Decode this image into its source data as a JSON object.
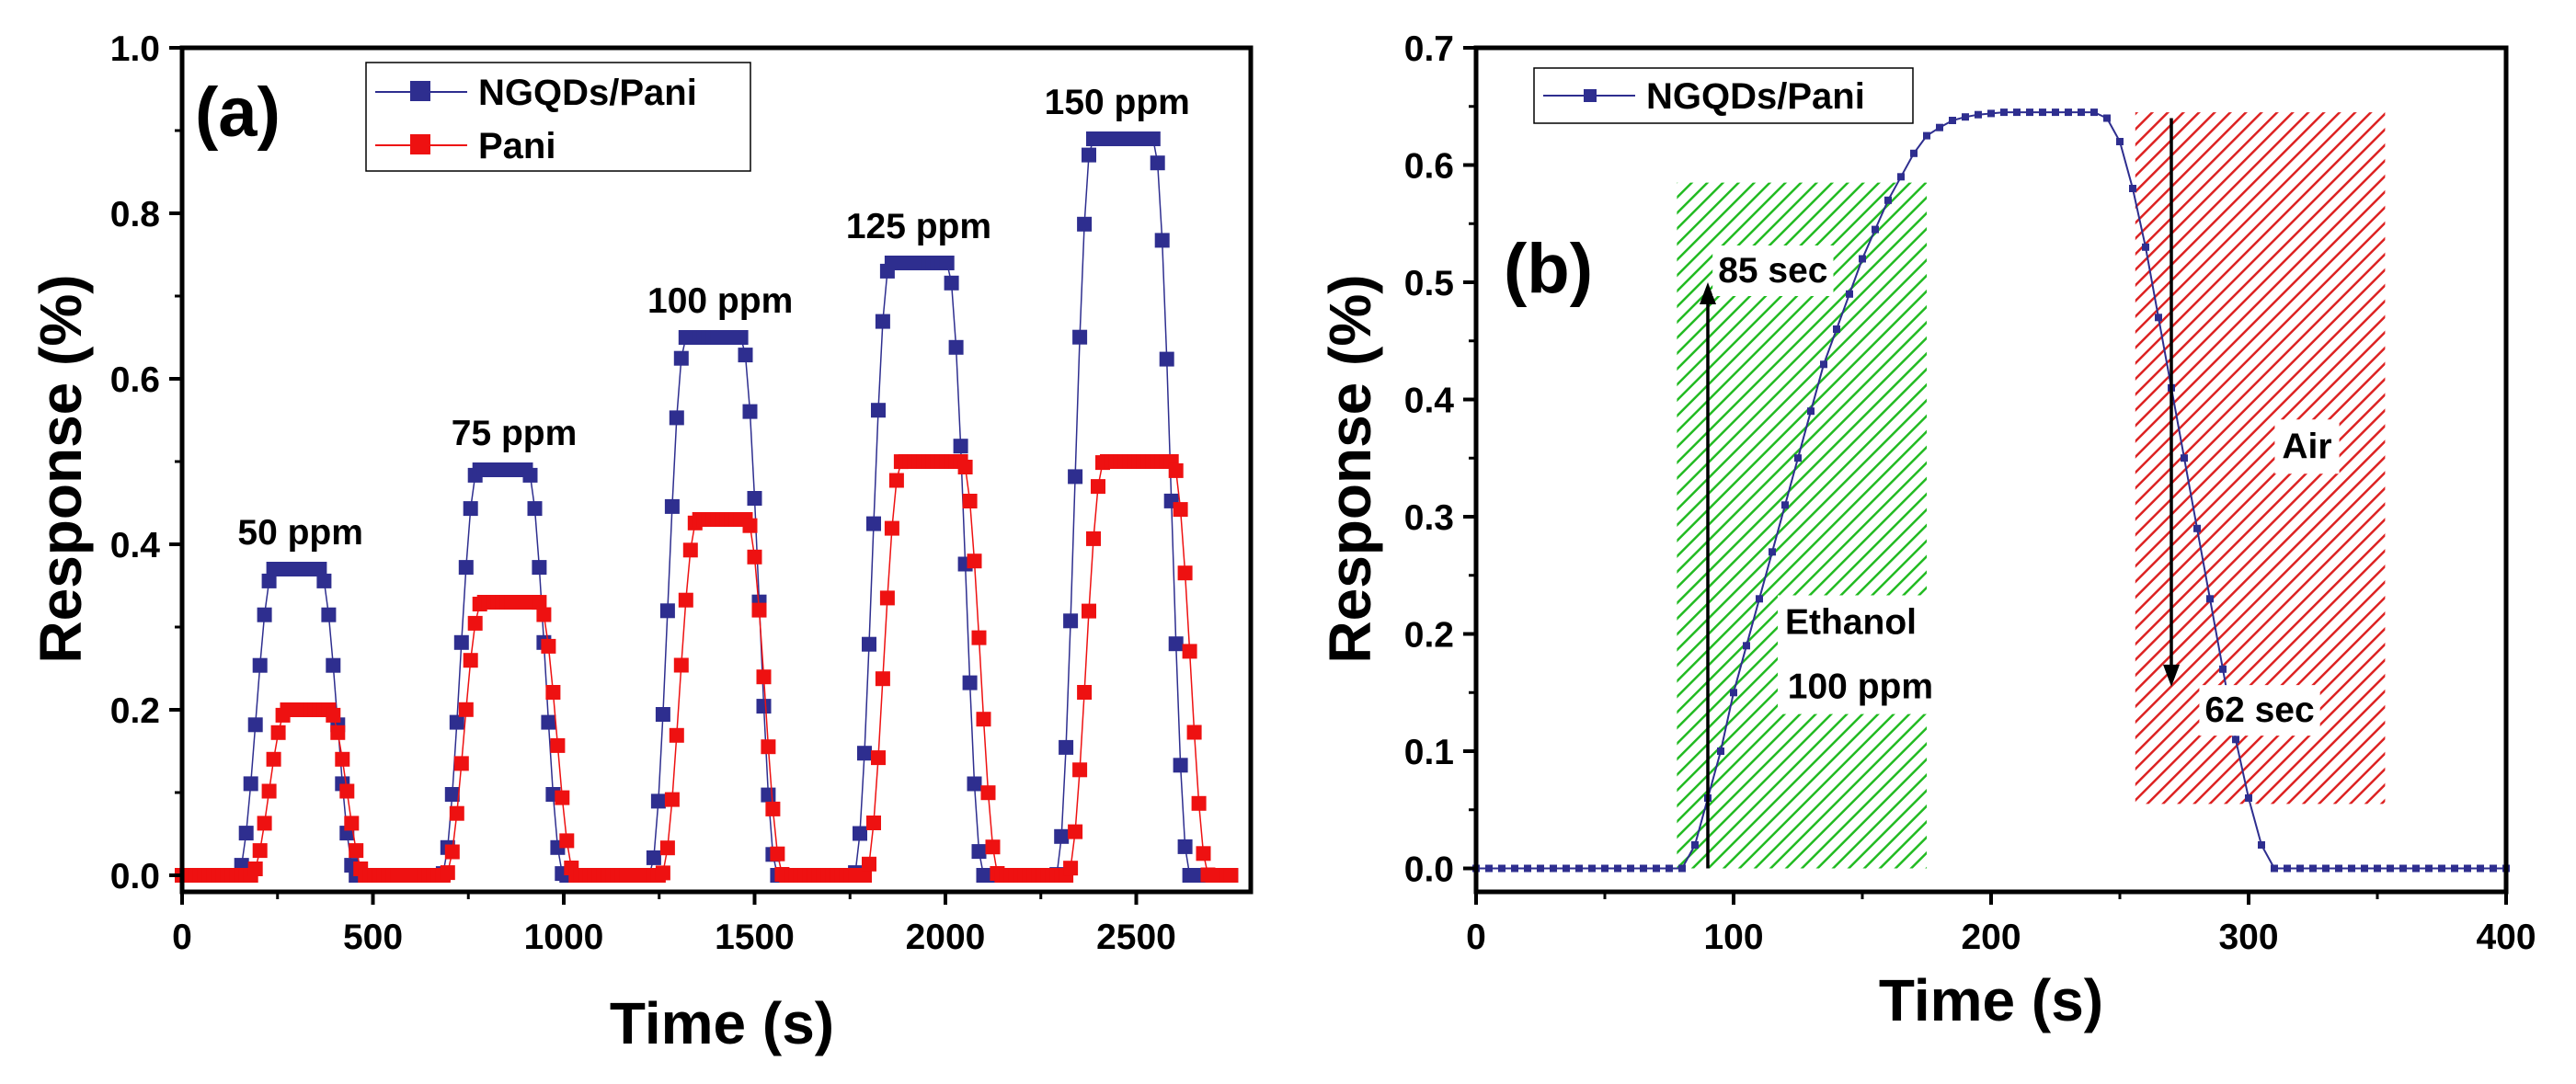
{
  "colors": {
    "navy": "#2e2e8f",
    "red": "#ee1111",
    "green": "#22bb22",
    "hatch_red": "#dd2222"
  },
  "chart_data": [
    {
      "panel": "(a)",
      "type": "scatter",
      "xlabel": "Time (s)",
      "ylabel": "Response (%)",
      "xlim": [
        0,
        2800
      ],
      "ylim": [
        -0.02,
        1.0
      ],
      "xticks": [
        0,
        500,
        1000,
        1500,
        2000,
        2500
      ],
      "xtick_labels": [
        "0",
        "500",
        "1000",
        "1500",
        "2000",
        "2500"
      ],
      "yticks": [
        0.0,
        0.2,
        0.4,
        0.6,
        0.8,
        1.0
      ],
      "ytick_labels": [
        "0.0",
        "0.2",
        "0.4",
        "0.6",
        "0.8",
        "1.0"
      ],
      "legend": [
        "NGQDs/Pani",
        "Pani"
      ],
      "legend_position": "top",
      "pulse_time_range": [
        0,
        2750
      ],
      "pulse_time_step": 12,
      "series": [
        {
          "name": "NGQDs/Pani",
          "color": "#2e2e8f",
          "pulses": [
            {
              "start": 145,
              "end": 455,
              "peak": 0.37
            },
            {
              "start": 680,
              "end": 1000,
              "peak": 0.49
            },
            {
              "start": 1225,
              "end": 1560,
              "peak": 0.65
            },
            {
              "start": 1760,
              "end": 2100,
              "peak": 0.74
            },
            {
              "start": 2290,
              "end": 2640,
              "peak": 0.89
            }
          ]
        },
        {
          "name": "Pani",
          "color": "#ee1111",
          "pulses": [
            {
              "start": 180,
              "end": 480,
              "peak": 0.2
            },
            {
              "start": 690,
              "end": 1030,
              "peak": 0.33
            },
            {
              "start": 1255,
              "end": 1575,
              "peak": 0.43
            },
            {
              "start": 1790,
              "end": 2140,
              "peak": 0.5
            },
            {
              "start": 2320,
              "end": 2690,
              "peak": 0.5
            }
          ]
        }
      ],
      "annotations": [
        {
          "text": "50 ppm",
          "x": 310,
          "y": 0.4
        },
        {
          "text": "75 ppm",
          "x": 870,
          "y": 0.52
        },
        {
          "text": "100 ppm",
          "x": 1410,
          "y": 0.68
        },
        {
          "text": "125 ppm",
          "x": 1930,
          "y": 0.77
        },
        {
          "text": "150 ppm",
          "x": 2450,
          "y": 0.92
        }
      ]
    },
    {
      "panel": "(b)",
      "type": "line",
      "xlabel": "Time (s)",
      "ylabel": "Response (%)",
      "xlim": [
        0,
        400
      ],
      "ylim": [
        -0.02,
        0.7
      ],
      "xticks": [
        0,
        100,
        200,
        300,
        400
      ],
      "xtick_labels": [
        "0",
        "100",
        "200",
        "300",
        "400"
      ],
      "yticks": [
        0.0,
        0.1,
        0.2,
        0.3,
        0.4,
        0.5,
        0.6,
        0.7
      ],
      "ytick_labels": [
        "0.0",
        "0.1",
        "0.2",
        "0.3",
        "0.4",
        "0.5",
        "0.6",
        "0.7"
      ],
      "legend": [
        "NGQDs/Pani"
      ],
      "legend_position": "top-left",
      "series": [
        {
          "name": "NGQDs/Pani",
          "color": "#2e2e8f",
          "x": [
            0,
            5,
            10,
            15,
            20,
            25,
            30,
            35,
            40,
            45,
            50,
            55,
            60,
            65,
            70,
            75,
            80,
            85,
            90,
            95,
            100,
            105,
            110,
            115,
            120,
            125,
            130,
            135,
            140,
            145,
            150,
            155,
            160,
            165,
            170,
            175,
            180,
            185,
            190,
            195,
            200,
            205,
            210,
            215,
            220,
            225,
            230,
            235,
            240,
            245,
            250,
            255,
            260,
            265,
            270,
            275,
            280,
            285,
            290,
            295,
            300,
            305,
            310,
            315,
            320,
            325,
            330,
            335,
            340,
            345,
            350,
            355,
            360,
            365,
            370,
            375,
            380,
            385,
            390,
            395,
            400
          ],
          "y": [
            0,
            0,
            0,
            0,
            0,
            0,
            0,
            0,
            0,
            0,
            0,
            0,
            0,
            0,
            0,
            0,
            0,
            0.02,
            0.06,
            0.1,
            0.15,
            0.19,
            0.23,
            0.27,
            0.31,
            0.35,
            0.39,
            0.43,
            0.46,
            0.49,
            0.52,
            0.545,
            0.57,
            0.59,
            0.61,
            0.625,
            0.632,
            0.638,
            0.641,
            0.643,
            0.644,
            0.645,
            0.645,
            0.645,
            0.645,
            0.645,
            0.645,
            0.645,
            0.645,
            0.64,
            0.62,
            0.58,
            0.53,
            0.47,
            0.41,
            0.35,
            0.29,
            0.23,
            0.17,
            0.11,
            0.06,
            0.02,
            0,
            0,
            0,
            0,
            0,
            0,
            0,
            0,
            0,
            0,
            0,
            0,
            0,
            0,
            0,
            0,
            0,
            0,
            0
          ]
        }
      ],
      "regions": [
        {
          "name": "ethanol",
          "x": [
            78,
            175
          ],
          "y": [
            0.0,
            0.585
          ],
          "color": "#22bb22"
        },
        {
          "name": "air",
          "x": [
            256,
            353
          ],
          "y": [
            0.055,
            0.645
          ],
          "color": "#dd2222"
        }
      ],
      "arrows": [
        {
          "name": "rise",
          "x": 90,
          "from": 0.0,
          "to": 0.5
        },
        {
          "name": "fall",
          "x": 270,
          "from": 0.64,
          "to": 0.155
        }
      ],
      "annotations": [
        {
          "text": "85 sec",
          "x": 94,
          "y": 0.5
        },
        {
          "text": "Ethanol",
          "x": 120,
          "y": 0.2
        },
        {
          "text": "100 ppm",
          "x": 121,
          "y": 0.145
        },
        {
          "text": "Air",
          "x": 313,
          "y": 0.35
        },
        {
          "text": "62 sec",
          "x": 283,
          "y": 0.125
        }
      ]
    }
  ]
}
